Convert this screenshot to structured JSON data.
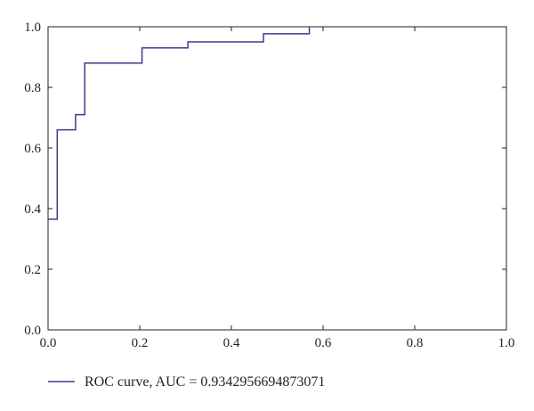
{
  "chart_data": {
    "type": "line",
    "title": "",
    "xlabel": "",
    "ylabel": "",
    "xlim": [
      0.0,
      1.0
    ],
    "ylim": [
      0.0,
      1.0
    ],
    "x_ticks": [
      0.0,
      0.2,
      0.4,
      0.6,
      0.8,
      1.0
    ],
    "y_ticks": [
      0.0,
      0.2,
      0.4,
      0.6,
      0.8,
      1.0
    ],
    "x_tick_labels": [
      "0.0",
      "0.2",
      "0.4",
      "0.6",
      "0.8",
      "1.0"
    ],
    "y_tick_labels": [
      "0.0",
      "0.2",
      "0.4",
      "0.6",
      "0.8",
      "1.0"
    ],
    "grid": false,
    "legend_position": "bottom-left, below plot",
    "series": [
      {
        "name": "ROC curve, AUC = 0.9342956694873071",
        "color": "#3b3b8f",
        "step": true,
        "x": [
          0.0,
          0.02,
          0.02,
          0.06,
          0.06,
          0.08,
          0.08,
          0.205,
          0.205,
          0.305,
          0.305,
          0.47,
          0.47,
          0.57,
          0.57
        ],
        "y": [
          0.365,
          0.365,
          0.66,
          0.66,
          0.71,
          0.71,
          0.88,
          0.88,
          0.93,
          0.93,
          0.95,
          0.95,
          0.977,
          0.977,
          1.0
        ]
      }
    ]
  }
}
